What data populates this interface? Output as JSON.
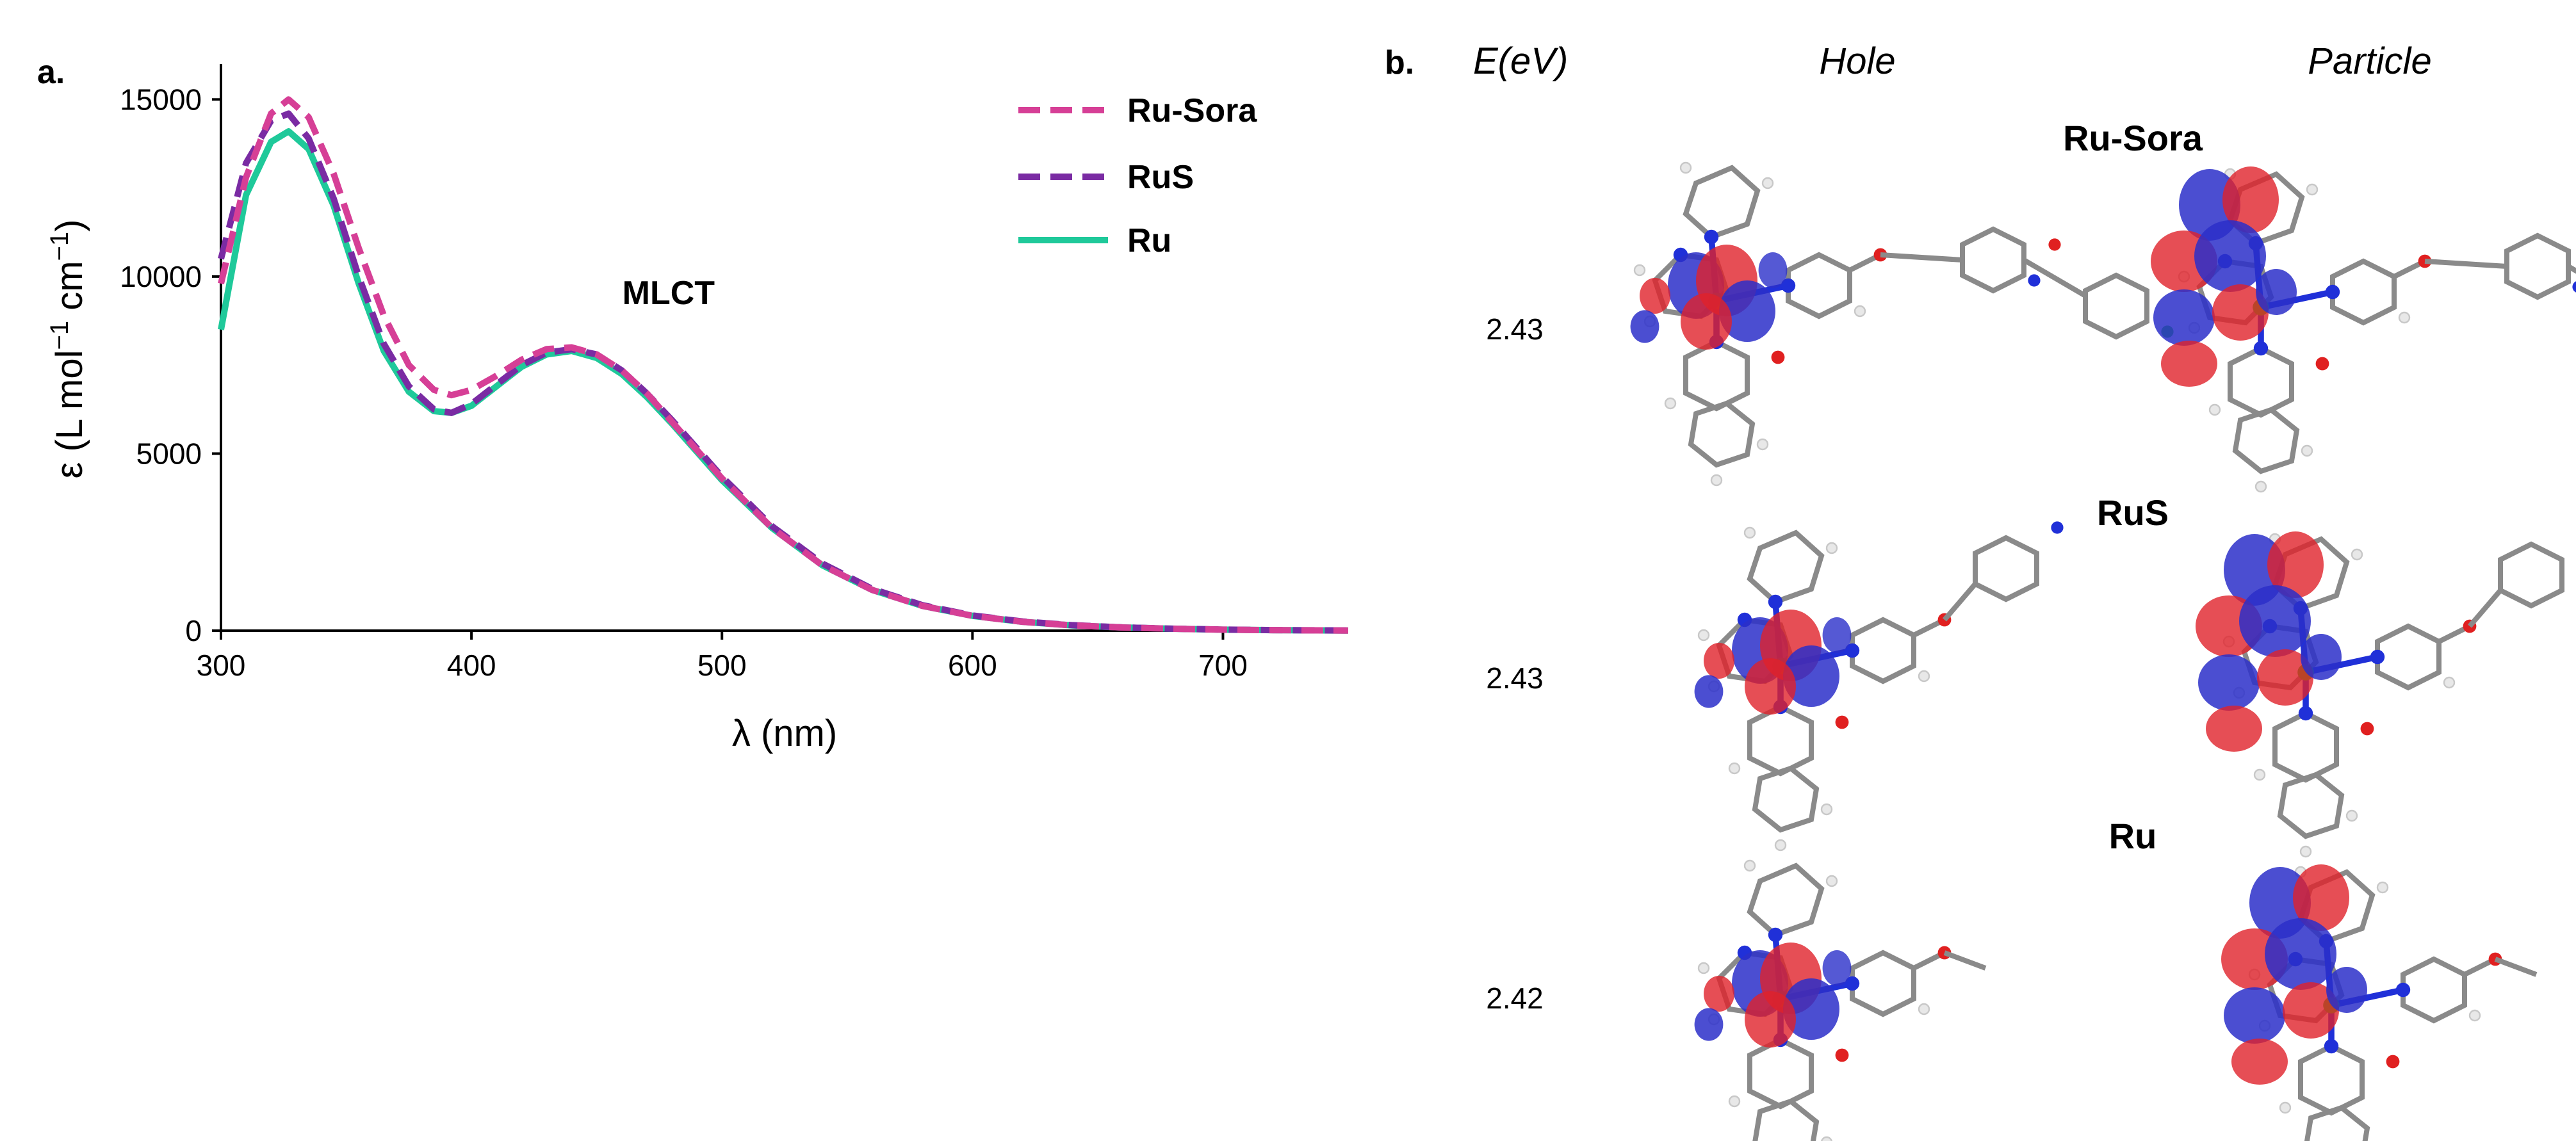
{
  "panel_a_label": "a.",
  "panel_b_label": "b.",
  "chart_data": {
    "type": "line",
    "title": "",
    "xlabel": "λ (nm)",
    "ylabel_main": "ε (L mol",
    "ylabel_exp1": "−1",
    "ylabel_mid": " cm",
    "ylabel_exp2": "−1",
    "ylabel_end": ")",
    "xlim": [
      300,
      750
    ],
    "ylim": [
      0,
      16000
    ],
    "xticks": [
      300,
      400,
      500,
      600,
      700
    ],
    "yticks": [
      0,
      5000,
      10000,
      15000
    ],
    "xtick_labels": [
      "300",
      "400",
      "500",
      "600",
      "700"
    ],
    "ytick_labels": [
      "0",
      "5000",
      "10000",
      "15000"
    ],
    "annotation": "MLCT",
    "annotation_at": [
      450,
      8500
    ],
    "legend_position": "top-right",
    "series": [
      {
        "name": "Ru-Sora",
        "color": "#d63f96",
        "style": "dashed",
        "x": [
          300,
          310,
          320,
          327,
          335,
          345,
          355,
          365,
          375,
          385,
          392,
          400,
          410,
          420,
          430,
          440,
          450,
          460,
          470,
          480,
          490,
          500,
          520,
          540,
          560,
          580,
          600,
          620,
          640,
          660,
          680,
          700,
          720,
          750
        ],
        "y": [
          9800,
          12800,
          14600,
          15000,
          14500,
          12900,
          10800,
          8900,
          7500,
          6800,
          6650,
          6800,
          7200,
          7650,
          7950,
          8000,
          7800,
          7350,
          6700,
          5900,
          5100,
          4300,
          2900,
          1850,
          1150,
          700,
          420,
          250,
          150,
          90,
          55,
          30,
          15,
          5
        ]
      },
      {
        "name": "RuS",
        "color": "#7a2ba3",
        "style": "dashed",
        "x": [
          300,
          310,
          320,
          327,
          335,
          345,
          355,
          365,
          375,
          385,
          392,
          400,
          410,
          420,
          430,
          440,
          450,
          460,
          470,
          480,
          490,
          500,
          520,
          540,
          560,
          580,
          600,
          620,
          640,
          660,
          680,
          700,
          720,
          750
        ],
        "y": [
          10500,
          13200,
          14400,
          14600,
          13900,
          12200,
          10000,
          8100,
          6900,
          6250,
          6150,
          6400,
          6950,
          7500,
          7850,
          7950,
          7800,
          7350,
          6700,
          5950,
          5150,
          4350,
          2950,
          1900,
          1180,
          720,
          430,
          260,
          155,
          92,
          56,
          32,
          16,
          6
        ]
      },
      {
        "name": "Ru",
        "color": "#1fc99a",
        "style": "solid",
        "x": [
          300,
          310,
          320,
          327,
          335,
          345,
          355,
          365,
          375,
          385,
          392,
          400,
          410,
          420,
          430,
          440,
          450,
          460,
          470,
          480,
          490,
          500,
          520,
          540,
          560,
          580,
          600,
          620,
          640,
          660,
          680,
          700,
          720,
          750
        ],
        "y": [
          8500,
          12300,
          13800,
          14100,
          13600,
          12000,
          9800,
          7900,
          6750,
          6200,
          6150,
          6350,
          6900,
          7450,
          7800,
          7900,
          7700,
          7250,
          6600,
          5850,
          5050,
          4250,
          2900,
          1850,
          1150,
          700,
          420,
          250,
          150,
          90,
          55,
          30,
          15,
          5
        ]
      }
    ]
  },
  "panel_b": {
    "energy_header": "E(eV)",
    "hole_header": "Hole",
    "particle_header": "Particle",
    "rows": [
      {
        "name": "Ru-Sora",
        "energy": "2.43"
      },
      {
        "name": "RuS",
        "energy": "2.43"
      },
      {
        "name": "Ru",
        "energy": "2.42"
      }
    ]
  },
  "colors": {
    "orbital_positive": "#2b2fc9",
    "orbital_negative": "#e0222b",
    "bond": "#808080",
    "hydrogen": "#e8e8e8",
    "nitrogen": "#2030d8",
    "oxygen": "#e02020",
    "chlorine": "#22cc22"
  }
}
